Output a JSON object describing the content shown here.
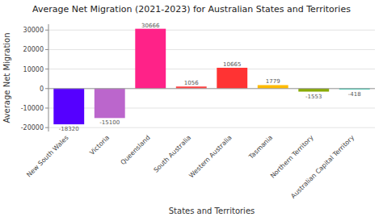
{
  "chart_data": {
    "type": "bar",
    "title": "Average Net Migration (2021-2023) for Australian States and Territories",
    "x_label": "States and Territories",
    "y_label": "Average Net Migration",
    "categories": [
      "New South Wales",
      "Victoria",
      "Queensland",
      "South Australia",
      "Western Australia",
      "Tasmania",
      "Northern Territory",
      "Australian Capital Territory"
    ],
    "values": [
      -18320,
      -15100,
      30666,
      1056,
      10665,
      1779,
      -1553,
      -418
    ],
    "colors": [
      "#5500ff",
      "#bb66cc",
      "#ff2288",
      "#ff4444",
      "#ff3333",
      "#ffbb00",
      "#88aa00",
      "#00ccaa"
    ],
    "ylim": [
      -22000,
      33000
    ],
    "yticks": [
      -20000,
      -10000,
      0,
      10000,
      20000,
      30000
    ],
    "grid": true,
    "data_labels": true
  }
}
